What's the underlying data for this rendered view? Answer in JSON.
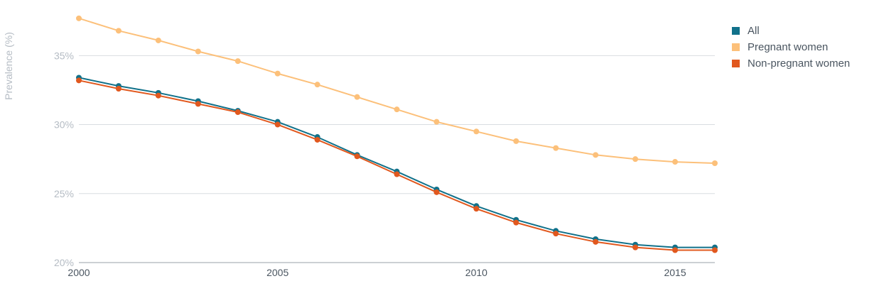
{
  "chart_data": {
    "type": "line",
    "title": "",
    "xlabel": "",
    "ylabel": "Prevalence (%)",
    "xlim": [
      2000,
      2016
    ],
    "ylim": [
      20,
      38
    ],
    "x_ticks": [
      2000,
      2005,
      2010,
      2015
    ],
    "x_tick_labels": [
      "2000",
      "2005",
      "2010",
      "2015"
    ],
    "y_ticks": [
      20,
      25,
      30,
      35
    ],
    "y_tick_labels": [
      "20%",
      "25%",
      "30%",
      "35%"
    ],
    "grid": true,
    "legend_position": "top-right",
    "x": [
      2000,
      2001,
      2002,
      2003,
      2004,
      2005,
      2006,
      2007,
      2008,
      2009,
      2010,
      2011,
      2012,
      2013,
      2014,
      2015,
      2016
    ],
    "series": [
      {
        "name": "All",
        "color": "#11718a",
        "values": [
          33.4,
          32.8,
          32.3,
          31.7,
          31.0,
          30.2,
          29.1,
          27.8,
          26.6,
          25.3,
          24.1,
          23.1,
          22.3,
          21.7,
          21.3,
          21.1,
          21.1
        ]
      },
      {
        "name": "Pregnant women",
        "color": "#fcc07a",
        "values": [
          37.7,
          36.8,
          36.1,
          35.3,
          34.6,
          33.7,
          32.9,
          32.0,
          31.1,
          30.2,
          29.5,
          28.8,
          28.3,
          27.8,
          27.5,
          27.3,
          27.2
        ]
      },
      {
        "name": "Non-pregnant women",
        "color": "#e1581e",
        "values": [
          33.2,
          32.6,
          32.1,
          31.5,
          30.9,
          30.0,
          28.9,
          27.7,
          26.4,
          25.1,
          23.9,
          22.9,
          22.1,
          21.5,
          21.1,
          20.9,
          20.9
        ]
      }
    ]
  }
}
